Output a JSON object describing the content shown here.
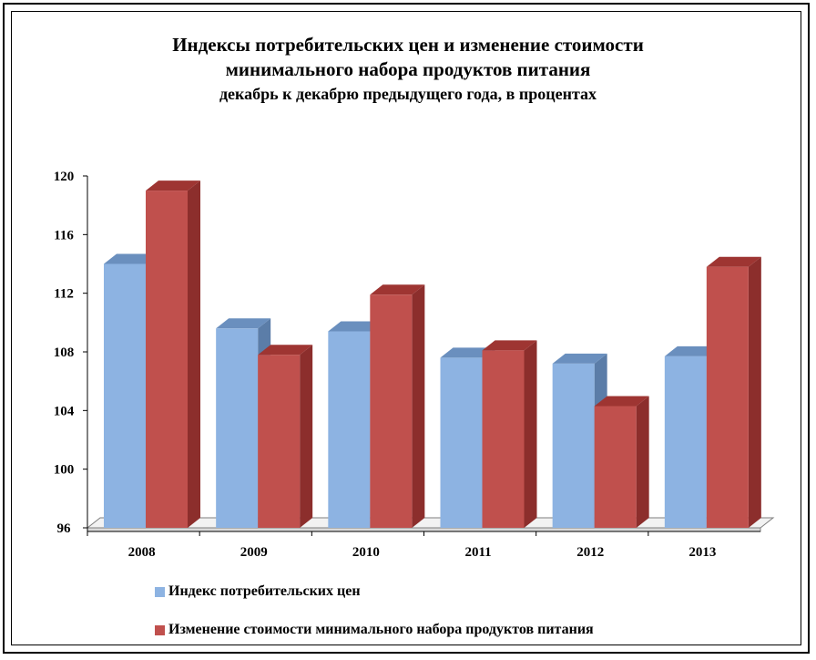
{
  "colors": {
    "series_1": "#8DB3E2",
    "series_1_side": "#5B7DA8",
    "series_1_top": "#6A8FBE",
    "series_2": "#C0504D",
    "series_2_side": "#8C2E2C",
    "series_2_top": "#9E3532",
    "floor": "#F2F2F2"
  },
  "chart_data": {
    "type": "bar",
    "title_line_1": "Индексы потребительских цен и изменение стоимости",
    "title_line_2": "минимального набора продуктов питания",
    "subtitle": "декабрь к декабрю предыдущего года, в процентах",
    "categories": [
      "2008",
      "2009",
      "2010",
      "2011",
      "2012",
      "2013"
    ],
    "series": [
      {
        "name": "Индекс потребительских цен",
        "values": [
          114.0,
          109.6,
          109.4,
          107.6,
          107.2,
          107.7
        ]
      },
      {
        "name": "Изменение стоимости минимального набора продуктов питания",
        "values": [
          119.0,
          107.8,
          111.9,
          108.1,
          104.3,
          113.8
        ]
      }
    ],
    "yticks": [
      "96",
      "100",
      "104",
      "108",
      "112",
      "116",
      "120"
    ],
    "ylim": [
      96,
      120
    ],
    "grid": false,
    "legend_position": "bottom"
  }
}
